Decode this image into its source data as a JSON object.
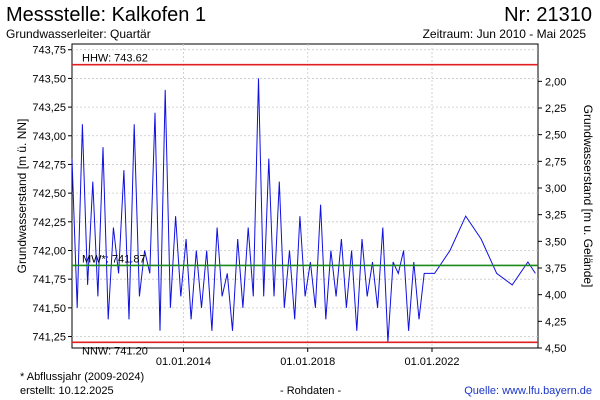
{
  "header": {
    "station": "Messstelle: Kalkofen 1",
    "number": "Nr: 21310",
    "aquifer": "Grundwasserleiter: Quartär",
    "period": "Zeitraum: Jun 2010 - Mai 2025"
  },
  "footer": {
    "note": "* Abflussjahr (2009-2024)",
    "created": "erstellt:  10.12.2025",
    "raw": "- Rohdaten -",
    "source": "Quelle:  www.lfu.bayern.de"
  },
  "colors": {
    "series": "#1010e0",
    "hhw_line": "#e02020",
    "nnw_line": "#e02020",
    "mw_line": "#1a8a1a",
    "grid": "#c8c8c8"
  },
  "chart_data": {
    "type": "line",
    "title": "Messstelle: Kalkofen 1",
    "ylabel": "Grundwasserstand [m ü. NN]",
    "y2label": "Grundwasserstand [m u. Gelände]",
    "ylim": [
      741.15,
      743.8
    ],
    "y2lim": [
      1.65,
      4.5
    ],
    "yticks": [
      743.75,
      743.5,
      743.25,
      743.0,
      742.75,
      742.5,
      742.25,
      742.0,
      741.75,
      741.5,
      741.25
    ],
    "yticklabels": [
      "743,75",
      "743,50",
      "743,25",
      "743,00",
      "742,75",
      "742,50",
      "742,25",
      "742,00",
      "741,75",
      "741,50",
      "741,25"
    ],
    "y2ticks": [
      2.0,
      2.25,
      2.5,
      2.75,
      3.0,
      3.25,
      3.5,
      3.75,
      4.0,
      4.25,
      4.5
    ],
    "y2ticklabels": [
      "2,00",
      "2,25",
      "2,50",
      "2,75",
      "3,00",
      "3,25",
      "3,50",
      "3,75",
      "4,00",
      "4,25",
      "4,50"
    ],
    "xlim": [
      "2010-06-01",
      "2025-05-31"
    ],
    "xticks": [
      "2014-01-01",
      "2018-01-01",
      "2022-01-01"
    ],
    "xticklabels": [
      "01.01.2014",
      "01.01.2018",
      "01.01.2022"
    ],
    "grid": true,
    "reference_lines": [
      {
        "name": "HHW",
        "label": "HHW: 743.62",
        "value": 743.62
      },
      {
        "name": "MW",
        "label": "MW*: 741.87",
        "value": 741.87
      },
      {
        "name": "NNW",
        "label": "NNW: 741.20",
        "value": 741.2
      }
    ],
    "series": [
      {
        "x": [
          "2010-06-01",
          "2010-08-01",
          "2010-10-01",
          "2010-12-01",
          "2011-02-01",
          "2011-04-01",
          "2011-06-01",
          "2011-08-01",
          "2011-10-01",
          "2011-12-01",
          "2012-02-01",
          "2012-04-01",
          "2012-06-01",
          "2012-08-01",
          "2012-10-01",
          "2012-12-01",
          "2013-02-01",
          "2013-04-01",
          "2013-06-01",
          "2013-08-01",
          "2013-10-01",
          "2013-12-01",
          "2014-02-01",
          "2014-04-01",
          "2014-06-01",
          "2014-08-01",
          "2014-10-01",
          "2014-12-01",
          "2015-02-01",
          "2015-04-01",
          "2015-06-01",
          "2015-08-01",
          "2015-10-01",
          "2015-12-01",
          "2016-02-01",
          "2016-04-01",
          "2016-06-01",
          "2016-08-01",
          "2016-10-01",
          "2016-12-01",
          "2017-02-01",
          "2017-04-01",
          "2017-06-01",
          "2017-08-01",
          "2017-10-01",
          "2017-12-01",
          "2018-02-01",
          "2018-04-01",
          "2018-06-01",
          "2018-08-01",
          "2018-10-01",
          "2018-12-01",
          "2019-02-01",
          "2019-04-01",
          "2019-06-01",
          "2019-08-01",
          "2019-10-01",
          "2019-12-01",
          "2020-02-01",
          "2020-04-01",
          "2020-06-01",
          "2020-08-01",
          "2020-10-01",
          "2020-12-01",
          "2021-02-01",
          "2021-04-01",
          "2021-06-01",
          "2021-08-01",
          "2021-10-01",
          "2022-02-01",
          "2022-08-01",
          "2023-02-01",
          "2023-08-01",
          "2024-02-01",
          "2024-08-01",
          "2025-02-01",
          "2025-05-01"
        ],
        "values": [
          742.8,
          741.5,
          743.1,
          741.7,
          742.6,
          741.6,
          742.9,
          741.4,
          742.2,
          741.8,
          742.7,
          741.4,
          743.1,
          741.6,
          742.0,
          741.8,
          743.2,
          741.3,
          743.4,
          741.5,
          742.3,
          741.6,
          742.1,
          741.4,
          742.0,
          741.5,
          742.0,
          741.3,
          742.2,
          741.6,
          741.8,
          741.3,
          742.1,
          741.5,
          742.2,
          741.6,
          743.5,
          741.6,
          742.8,
          741.6,
          742.6,
          741.5,
          742.0,
          741.4,
          742.3,
          741.6,
          741.9,
          741.5,
          742.4,
          741.4,
          742.0,
          741.6,
          742.1,
          741.5,
          742.0,
          741.3,
          742.1,
          741.6,
          741.9,
          741.5,
          742.2,
          741.2,
          741.9,
          741.8,
          742.0,
          741.3,
          741.9,
          741.4,
          741.8,
          741.8,
          742.0,
          742.3,
          742.1,
          741.8,
          741.7,
          741.9,
          741.8
        ]
      }
    ]
  }
}
